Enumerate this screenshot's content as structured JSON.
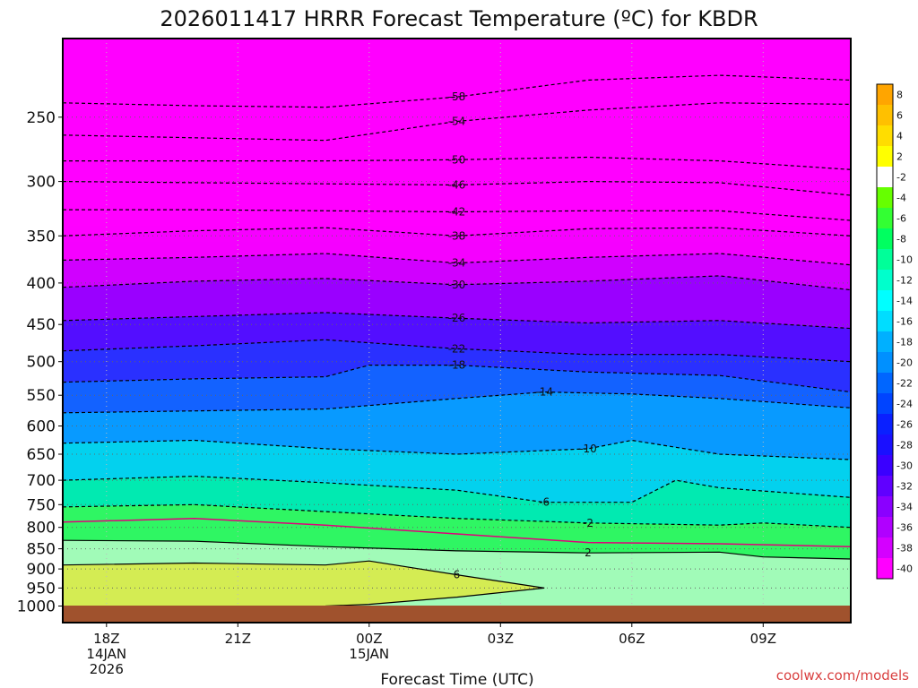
{
  "chart_data": {
    "type": "contour",
    "title": "2026011417 HRRR Forecast Temperature (ºC) for KBDR",
    "xlabel": "Forecast Time (UTC)",
    "ylabel": "",
    "credit": "coolwx.com/models",
    "y_scale": "log-pressure",
    "y_ticks": [
      250,
      300,
      350,
      400,
      450,
      500,
      550,
      600,
      650,
      700,
      750,
      800,
      850,
      900,
      950,
      1000
    ],
    "x_ticks": [
      {
        "hour": 18,
        "lines": [
          "18Z",
          "14JAN",
          "2026"
        ]
      },
      {
        "hour": 21,
        "lines": [
          "21Z"
        ]
      },
      {
        "hour": 24,
        "lines": [
          "00Z",
          "15JAN"
        ]
      },
      {
        "hour": 27,
        "lines": [
          "03Z"
        ]
      },
      {
        "hour": 30,
        "lines": [
          "06Z"
        ]
      },
      {
        "hour": 33,
        "lines": [
          "09Z"
        ]
      }
    ],
    "xlim": [
      17,
      35
    ],
    "colorbar": {
      "labels": [
        "8",
        "6",
        "4",
        "2",
        "-2",
        "-4",
        "-6",
        "-8",
        "-10",
        "-12",
        "-14",
        "-16",
        "-18",
        "-20",
        "-22",
        "-24",
        "-26",
        "-28",
        "-30",
        "-32",
        "-34",
        "-36",
        "-38",
        "-40"
      ]
    },
    "contours": [
      {
        "level": -58,
        "label": "-58",
        "points": [
          [
            17,
            240
          ],
          [
            20,
            242
          ],
          [
            23,
            243
          ],
          [
            26,
            236
          ],
          [
            29,
            225
          ],
          [
            32,
            222
          ],
          [
            35,
            225
          ]
        ]
      },
      {
        "level": -54,
        "label": "-54",
        "points": [
          [
            17,
            263
          ],
          [
            20,
            265
          ],
          [
            23,
            267
          ],
          [
            26,
            253
          ],
          [
            29,
            245
          ],
          [
            32,
            240
          ],
          [
            35,
            241
          ]
        ]
      },
      {
        "level": -50,
        "label": "-50",
        "points": [
          [
            17,
            283
          ],
          [
            20,
            283
          ],
          [
            23,
            283
          ],
          [
            26,
            282
          ],
          [
            29,
            280
          ],
          [
            32,
            283
          ],
          [
            35,
            290
          ]
        ]
      },
      {
        "level": -46,
        "label": "-46",
        "points": [
          [
            17,
            300
          ],
          [
            20,
            301
          ],
          [
            23,
            302
          ],
          [
            26,
            303
          ],
          [
            29,
            300
          ],
          [
            32,
            301
          ],
          [
            35,
            312
          ]
        ]
      },
      {
        "level": -42,
        "label": "-42",
        "points": [
          [
            17,
            325
          ],
          [
            20,
            325
          ],
          [
            23,
            326
          ],
          [
            26,
            327
          ],
          [
            29,
            326
          ],
          [
            32,
            326
          ],
          [
            35,
            335
          ]
        ]
      },
      {
        "level": -38,
        "label": "-38",
        "points": [
          [
            17,
            350
          ],
          [
            20,
            345
          ],
          [
            23,
            342
          ],
          [
            26,
            350
          ],
          [
            29,
            343
          ],
          [
            32,
            342
          ],
          [
            35,
            350
          ]
        ]
      },
      {
        "level": -34,
        "label": "-34",
        "points": [
          [
            17,
            375
          ],
          [
            20,
            372
          ],
          [
            23,
            368
          ],
          [
            26,
            378
          ],
          [
            29,
            372
          ],
          [
            32,
            368
          ],
          [
            35,
            380
          ]
        ]
      },
      {
        "level": -30,
        "label": "-30",
        "points": [
          [
            17,
            405
          ],
          [
            20,
            398
          ],
          [
            23,
            395
          ],
          [
            26,
            402
          ],
          [
            29,
            398
          ],
          [
            32,
            392
          ],
          [
            35,
            408
          ]
        ]
      },
      {
        "level": -26,
        "label": "-26",
        "points": [
          [
            17,
            445
          ],
          [
            20,
            440
          ],
          [
            23,
            435
          ],
          [
            26,
            442
          ],
          [
            29,
            448
          ],
          [
            32,
            445
          ],
          [
            35,
            455
          ]
        ]
      },
      {
        "level": -22,
        "label": "-22",
        "points": [
          [
            17,
            485
          ],
          [
            20,
            478
          ],
          [
            23,
            470
          ],
          [
            26,
            482
          ],
          [
            29,
            490
          ],
          [
            32,
            490
          ],
          [
            35,
            500
          ]
        ]
      },
      {
        "level": -18,
        "label": "-18",
        "points": [
          [
            17,
            530
          ],
          [
            20,
            525
          ],
          [
            23,
            522
          ],
          [
            24,
            505
          ],
          [
            26,
            505
          ],
          [
            29,
            515
          ],
          [
            32,
            520
          ],
          [
            35,
            545
          ]
        ]
      },
      {
        "level": -14,
        "label": "-14",
        "points": [
          [
            17,
            578
          ],
          [
            20,
            575
          ],
          [
            23,
            572
          ],
          [
            26,
            555
          ],
          [
            28,
            545
          ],
          [
            30,
            548
          ],
          [
            32,
            555
          ],
          [
            35,
            570
          ]
        ]
      },
      {
        "level": -10,
        "label": "-10",
        "points": [
          [
            17,
            630
          ],
          [
            20,
            625
          ],
          [
            23,
            640
          ],
          [
            26,
            650
          ],
          [
            29,
            640
          ],
          [
            30,
            625
          ],
          [
            32,
            650
          ],
          [
            35,
            660
          ]
        ]
      },
      {
        "level": -6,
        "label": "-6",
        "points": [
          [
            17,
            700
          ],
          [
            20,
            692
          ],
          [
            23,
            705
          ],
          [
            26,
            720
          ],
          [
            28,
            745
          ],
          [
            30,
            745
          ],
          [
            31,
            700
          ],
          [
            32,
            715
          ],
          [
            35,
            735
          ]
        ]
      },
      {
        "level": -2,
        "label": "-2",
        "points": [
          [
            17,
            755
          ],
          [
            20,
            750
          ],
          [
            23,
            765
          ],
          [
            26,
            780
          ],
          [
            29,
            790
          ],
          [
            32,
            795
          ],
          [
            33,
            790
          ],
          [
            35,
            800
          ]
        ]
      },
      {
        "level": 2,
        "label": "2",
        "points": [
          [
            17,
            830
          ],
          [
            20,
            832
          ],
          [
            23,
            845
          ],
          [
            26,
            855
          ],
          [
            29,
            860
          ],
          [
            32,
            858
          ],
          [
            33,
            870
          ],
          [
            35,
            875
          ]
        ]
      },
      {
        "level": 6,
        "label": "6",
        "points": [
          [
            17,
            890
          ],
          [
            20,
            885
          ],
          [
            23,
            890
          ],
          [
            24,
            880
          ],
          [
            26,
            915
          ],
          [
            28,
            950
          ],
          [
            26,
            975
          ],
          [
            24,
            995
          ],
          [
            23,
            1000
          ]
        ]
      }
    ]
  }
}
